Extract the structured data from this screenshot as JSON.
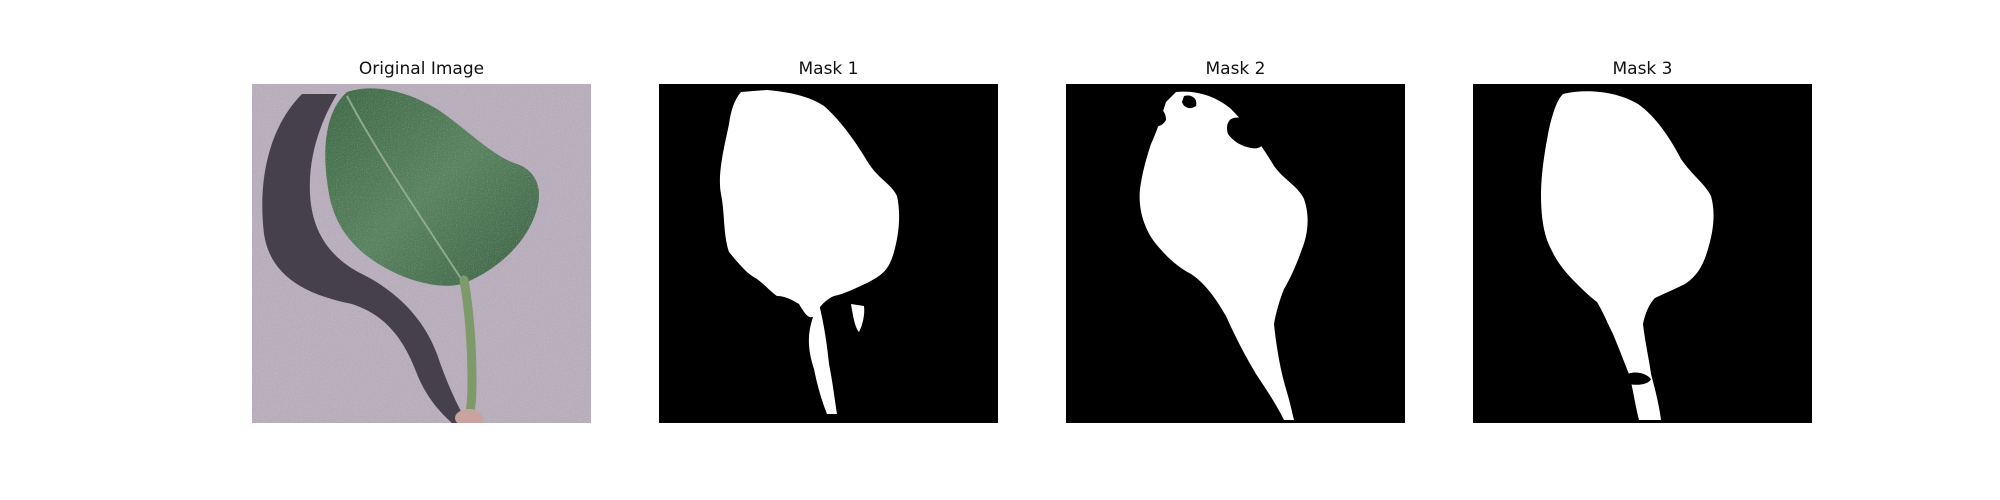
{
  "figure": {
    "panels": [
      {
        "title": "Original Image",
        "kind": "photo"
      },
      {
        "title": "Mask 1",
        "kind": "mask"
      },
      {
        "title": "Mask 2",
        "kind": "mask"
      },
      {
        "title": "Mask 3",
        "kind": "mask"
      }
    ],
    "colors": {
      "background": "#b9aebc",
      "leaf": "#4f7a56",
      "leaf_dark": "#355a3f",
      "shadow": "#3a3440",
      "mask_bg": "#000000",
      "mask_fg": "#ffffff"
    }
  }
}
